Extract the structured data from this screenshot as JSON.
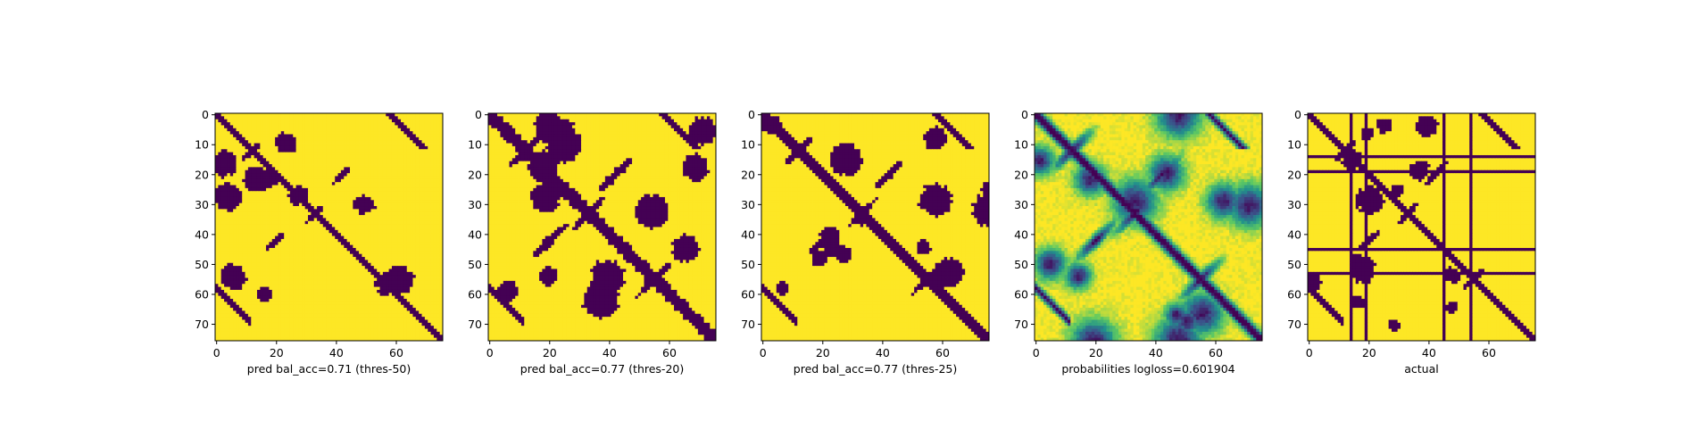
{
  "chart_data": [
    {
      "type": "heatmap",
      "kind": "binary",
      "xlabel": "pred bal_acc=0.71 (thres-50)",
      "xlim": [
        0,
        76
      ],
      "ylim": [
        76,
        0
      ],
      "xticks": [
        0,
        20,
        40,
        60
      ],
      "yticks": [
        0,
        10,
        20,
        30,
        40,
        50,
        60,
        70
      ],
      "colors": {
        "low": "#440154",
        "high": "#fde725"
      }
    },
    {
      "type": "heatmap",
      "kind": "binary",
      "xlabel": "pred bal_acc=0.77 (thres-20)",
      "xlim": [
        0,
        76
      ],
      "ylim": [
        76,
        0
      ],
      "xticks": [
        0,
        20,
        40,
        60
      ],
      "yticks": [
        0,
        10,
        20,
        30,
        40,
        50,
        60,
        70
      ],
      "colors": {
        "low": "#440154",
        "high": "#fde725"
      }
    },
    {
      "type": "heatmap",
      "kind": "binary",
      "xlabel": "pred bal_acc=0.77 (thres-25)",
      "xlim": [
        0,
        76
      ],
      "ylim": [
        76,
        0
      ],
      "xticks": [
        0,
        20,
        40,
        60
      ],
      "yticks": [
        0,
        10,
        20,
        30,
        40,
        50,
        60,
        70
      ],
      "colors": {
        "low": "#440154",
        "high": "#fde725"
      }
    },
    {
      "type": "heatmap",
      "kind": "continuous",
      "xlabel": "probabilities logloss=0.601904",
      "xlim": [
        0,
        76
      ],
      "ylim": [
        76,
        0
      ],
      "xticks": [
        0,
        20,
        40,
        60
      ],
      "yticks": [
        0,
        10,
        20,
        30,
        40,
        50,
        60,
        70
      ],
      "colors": {
        "low": "#440154",
        "mid": "#21918c",
        "high": "#fde725"
      }
    },
    {
      "type": "heatmap",
      "kind": "binary",
      "xlabel": "actual",
      "xlim": [
        0,
        76
      ],
      "ylim": [
        76,
        0
      ],
      "xticks": [
        0,
        20,
        40,
        60
      ],
      "yticks": [
        0,
        10,
        20,
        30,
        40,
        50,
        60,
        70
      ],
      "colors": {
        "low": "#440154",
        "high": "#fde725"
      }
    }
  ]
}
